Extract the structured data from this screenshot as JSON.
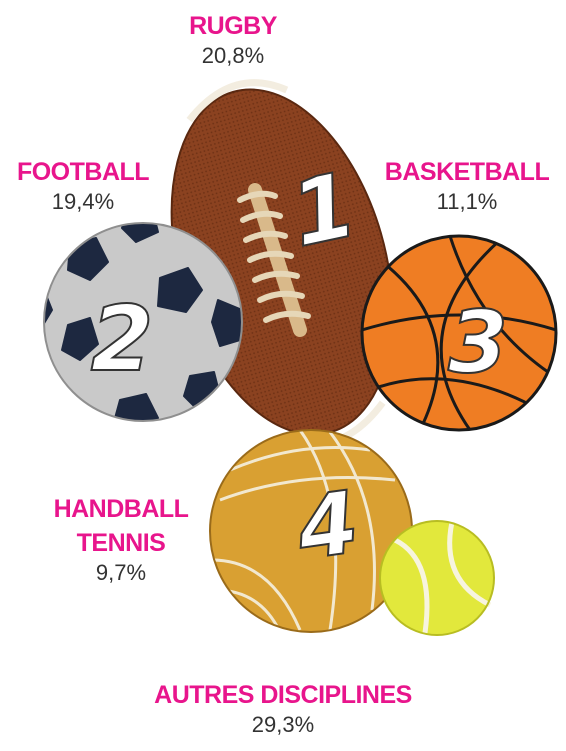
{
  "colors": {
    "accent": "#e8158c",
    "text": "#333333",
    "rugby": "#8b4220",
    "football": "#c9c9c9",
    "football_panels": "#1d2840",
    "basketball": "#ef7d23",
    "volleyball": "#d9a032",
    "tennis": "#e2e83c"
  },
  "chart_data": {
    "type": "pictorial",
    "series": [
      {
        "rank": "1",
        "name": "RUGBY",
        "value_label": "20,8%",
        "value": 20.8,
        "icon": "rugby-ball-icon"
      },
      {
        "rank": "2",
        "name": "FOOTBALL",
        "value_label": "19,4%",
        "value": 19.4,
        "icon": "soccer-ball-icon"
      },
      {
        "rank": "3",
        "name": "BASKETBALL",
        "value_label": "11,1%",
        "value": 11.1,
        "icon": "basketball-icon"
      },
      {
        "rank": "4",
        "name_line1": "HANDBALL",
        "name_line2": "TENNIS",
        "value_label": "9,7%",
        "value": 9.7,
        "icon": "handball-tennis-icon"
      },
      {
        "rank": "",
        "name": "AUTRES DISCIPLINES",
        "value_label": "29,3%",
        "value": 29.3,
        "icon": ""
      }
    ]
  }
}
